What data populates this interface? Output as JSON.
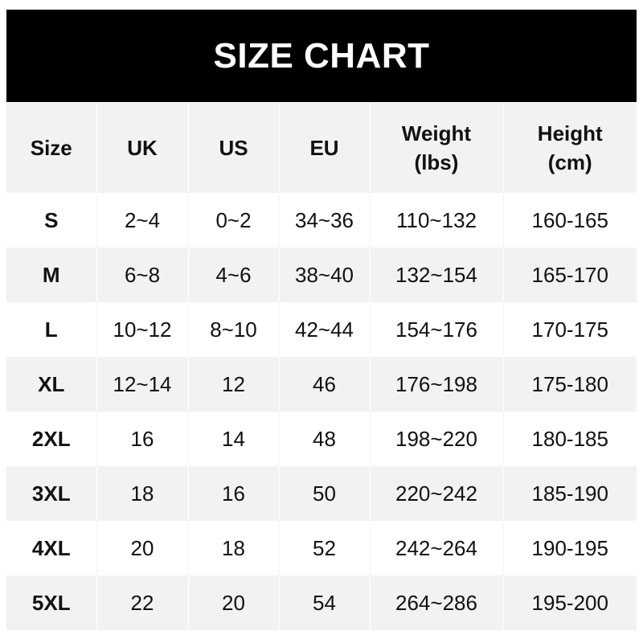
{
  "title": "SIZE CHART",
  "headers": [
    {
      "line1": "Size",
      "line2": ""
    },
    {
      "line1": "UK",
      "line2": ""
    },
    {
      "line1": "US",
      "line2": ""
    },
    {
      "line1": "EU",
      "line2": ""
    },
    {
      "line1": "Weight",
      "line2": "(lbs)"
    },
    {
      "line1": "Height",
      "line2": "(cm)"
    }
  ],
  "rows": [
    [
      "S",
      "2~4",
      "0~2",
      "34~36",
      "110~132",
      "160-165"
    ],
    [
      "M",
      "6~8",
      "4~6",
      "38~40",
      "132~154",
      "165-170"
    ],
    [
      "L",
      "10~12",
      "8~10",
      "42~44",
      "154~176",
      "170-175"
    ],
    [
      "XL",
      "12~14",
      "12",
      "46",
      "176~198",
      "175-180"
    ],
    [
      "2XL",
      "16",
      "14",
      "48",
      "198~220",
      "180-185"
    ],
    [
      "3XL",
      "18",
      "16",
      "50",
      "220~242",
      "185-190"
    ],
    [
      "4XL",
      "20",
      "18",
      "52",
      "242~264",
      "190-195"
    ],
    [
      "5XL",
      "22",
      "20",
      "54",
      "264~286",
      "195-200"
    ]
  ],
  "colors": {
    "banner": "#000000",
    "stripe": "#f2f2f2",
    "text": "#111111"
  }
}
